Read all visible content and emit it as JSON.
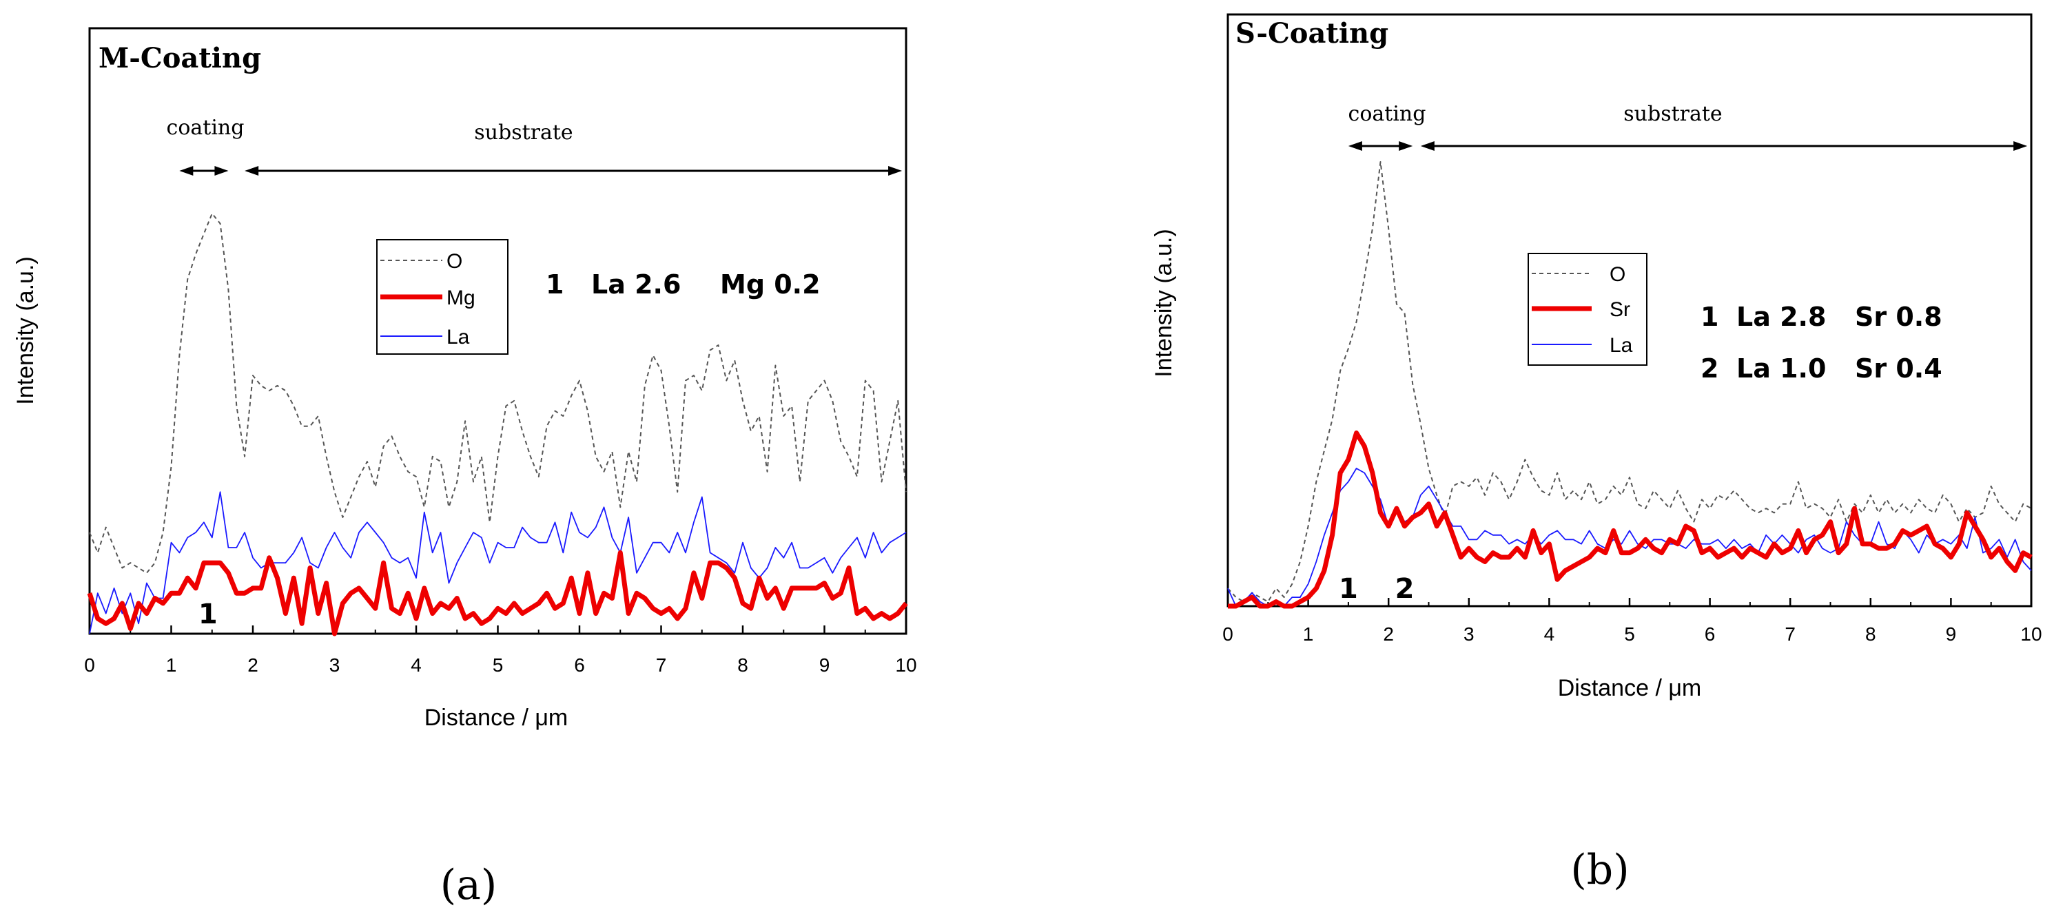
{
  "figure": {
    "panel_labels": [
      "(a)",
      "(b)"
    ]
  },
  "chart_data": [
    {
      "type": "line",
      "title": "M-Coating",
      "xlabel": "Distance / μm",
      "ylabel": "Intensity (a.u.)",
      "xlim": [
        0,
        10
      ],
      "ylim": [
        0,
        1
      ],
      "xticks": [
        "0",
        "1",
        "2",
        "3",
        "4",
        "5",
        "6",
        "7",
        "8",
        "9",
        "10"
      ],
      "yticks": [],
      "legend": [
        "O",
        "Mg",
        "La"
      ],
      "legend_placement": "upper-middle",
      "colors": {
        "O": "#555555",
        "Mg": "#ee0000",
        "La": "#1a1aff"
      },
      "region_labels": {
        "coating": "coating",
        "substrate": "substrate"
      },
      "regions": [
        {
          "name": "coating",
          "x_start": 1.1,
          "x_end": 1.7
        },
        {
          "name": "substrate",
          "x_start": 1.9,
          "x_end": 9.95
        }
      ],
      "annotation_text": [
        "1",
        "La 2.6",
        "Mg 0.2"
      ],
      "point_markers": [
        {
          "label": "1",
          "x": 1.45
        }
      ],
      "x": [
        0.0,
        0.1,
        0.2,
        0.3,
        0.4,
        0.5,
        0.6,
        0.7,
        0.8,
        0.9,
        1.0,
        1.1,
        1.2,
        1.3,
        1.4,
        1.5,
        1.6,
        1.7,
        1.8,
        1.9,
        2.0,
        2.1,
        2.2,
        2.3,
        2.4,
        2.5,
        2.6,
        2.7,
        2.8,
        2.9,
        3.0,
        3.1,
        3.2,
        3.3,
        3.4,
        3.5,
        3.6,
        3.7,
        3.8,
        3.9,
        4.0,
        4.1,
        4.2,
        4.3,
        4.4,
        4.5,
        4.6,
        4.7,
        4.8,
        4.9,
        5.0,
        5.1,
        5.2,
        5.3,
        5.4,
        5.5,
        5.6,
        5.7,
        5.8,
        5.9,
        6.0,
        6.1,
        6.2,
        6.3,
        6.4,
        6.5,
        6.6,
        6.7,
        6.8,
        6.9,
        7.0,
        7.1,
        7.2,
        7.3,
        7.4,
        7.5,
        7.6,
        7.7,
        7.8,
        7.9,
        8.0,
        8.1,
        8.2,
        8.3,
        8.4,
        8.5,
        8.6,
        8.7,
        8.8,
        8.9,
        9.0,
        9.1,
        9.2,
        9.3,
        9.4,
        9.5,
        9.6,
        9.7,
        9.8,
        9.9,
        10.0
      ],
      "series": [
        {
          "name": "O",
          "values": [
            0.2,
            0.16,
            0.21,
            0.17,
            0.13,
            0.14,
            0.13,
            0.12,
            0.14,
            0.2,
            0.33,
            0.55,
            0.7,
            0.75,
            0.79,
            0.83,
            0.81,
            0.68,
            0.45,
            0.35,
            0.51,
            0.49,
            0.48,
            0.49,
            0.48,
            0.45,
            0.41,
            0.41,
            0.43,
            0.35,
            0.28,
            0.23,
            0.27,
            0.31,
            0.34,
            0.29,
            0.37,
            0.39,
            0.35,
            0.32,
            0.31,
            0.25,
            0.35,
            0.34,
            0.25,
            0.3,
            0.42,
            0.3,
            0.35,
            0.22,
            0.35,
            0.45,
            0.46,
            0.4,
            0.35,
            0.31,
            0.41,
            0.44,
            0.43,
            0.47,
            0.5,
            0.44,
            0.35,
            0.32,
            0.36,
            0.25,
            0.36,
            0.3,
            0.49,
            0.55,
            0.52,
            0.41,
            0.28,
            0.5,
            0.51,
            0.48,
            0.56,
            0.57,
            0.5,
            0.54,
            0.46,
            0.4,
            0.43,
            0.32,
            0.53,
            0.43,
            0.45,
            0.3,
            0.46,
            0.48,
            0.5,
            0.46,
            0.38,
            0.35,
            0.31,
            0.5,
            0.48,
            0.3,
            0.38,
            0.46,
            0.28
          ]
        },
        {
          "name": "Mg",
          "values": [
            0.08,
            0.03,
            0.02,
            0.03,
            0.06,
            0.01,
            0.06,
            0.04,
            0.07,
            0.06,
            0.08,
            0.08,
            0.11,
            0.09,
            0.14,
            0.14,
            0.14,
            0.12,
            0.08,
            0.08,
            0.09,
            0.09,
            0.15,
            0.11,
            0.04,
            0.11,
            0.02,
            0.13,
            0.04,
            0.1,
            0.0,
            0.06,
            0.08,
            0.09,
            0.07,
            0.05,
            0.14,
            0.05,
            0.04,
            0.08,
            0.03,
            0.09,
            0.04,
            0.06,
            0.05,
            0.07,
            0.03,
            0.04,
            0.02,
            0.03,
            0.05,
            0.04,
            0.06,
            0.04,
            0.05,
            0.06,
            0.08,
            0.05,
            0.06,
            0.11,
            0.04,
            0.12,
            0.04,
            0.08,
            0.07,
            0.16,
            0.04,
            0.08,
            0.07,
            0.05,
            0.04,
            0.05,
            0.03,
            0.05,
            0.12,
            0.07,
            0.14,
            0.14,
            0.13,
            0.11,
            0.06,
            0.05,
            0.11,
            0.07,
            0.09,
            0.05,
            0.09,
            0.09,
            0.09,
            0.09,
            0.1,
            0.07,
            0.08,
            0.13,
            0.04,
            0.05,
            0.03,
            0.04,
            0.03,
            0.04,
            0.06
          ]
        },
        {
          "name": "La",
          "values": [
            0.0,
            0.08,
            0.04,
            0.09,
            0.04,
            0.08,
            0.02,
            0.1,
            0.07,
            0.07,
            0.18,
            0.16,
            0.19,
            0.2,
            0.22,
            0.19,
            0.28,
            0.17,
            0.17,
            0.2,
            0.15,
            0.13,
            0.14,
            0.14,
            0.14,
            0.16,
            0.19,
            0.14,
            0.13,
            0.17,
            0.2,
            0.17,
            0.15,
            0.2,
            0.22,
            0.2,
            0.18,
            0.15,
            0.14,
            0.15,
            0.11,
            0.24,
            0.16,
            0.2,
            0.1,
            0.14,
            0.17,
            0.2,
            0.19,
            0.14,
            0.18,
            0.17,
            0.17,
            0.21,
            0.19,
            0.18,
            0.18,
            0.22,
            0.16,
            0.24,
            0.2,
            0.19,
            0.21,
            0.25,
            0.19,
            0.16,
            0.23,
            0.12,
            0.15,
            0.18,
            0.18,
            0.16,
            0.2,
            0.16,
            0.22,
            0.27,
            0.16,
            0.15,
            0.14,
            0.12,
            0.18,
            0.13,
            0.11,
            0.13,
            0.17,
            0.15,
            0.18,
            0.13,
            0.13,
            0.14,
            0.15,
            0.12,
            0.15,
            0.17,
            0.19,
            0.15,
            0.2,
            0.16,
            0.18,
            0.19,
            0.2
          ]
        }
      ]
    },
    {
      "type": "line",
      "title": "S-Coating",
      "xlabel": "Distance / μm",
      "ylabel": "Intensity (a.u.)",
      "xlim": [
        0,
        10
      ],
      "ylim": [
        0,
        1
      ],
      "xticks": [
        "0",
        "1",
        "2",
        "3",
        "4",
        "5",
        "6",
        "7",
        "8",
        "9",
        "10"
      ],
      "yticks": [],
      "legend": [
        "O",
        "Sr",
        "La"
      ],
      "legend_placement": "upper-middle",
      "colors": {
        "O": "#555555",
        "Sr": "#ee0000",
        "La": "#1a1aff"
      },
      "region_labels": {
        "coating": "coating",
        "substrate": "substrate"
      },
      "regions": [
        {
          "name": "coating",
          "x_start": 1.5,
          "x_end": 2.3
        },
        {
          "name": "substrate",
          "x_start": 2.4,
          "x_end": 9.95
        }
      ],
      "annotation_text": [
        [
          "1",
          "La 2.8",
          "Sr 0.8"
        ],
        [
          "2",
          "La 1.0",
          "Sr 0.4"
        ]
      ],
      "point_markers": [
        {
          "label": "1",
          "x": 1.5
        },
        {
          "label": "2",
          "x": 2.2
        }
      ],
      "x": [
        0.0,
        0.1,
        0.2,
        0.3,
        0.4,
        0.5,
        0.6,
        0.7,
        0.8,
        0.9,
        1.0,
        1.1,
        1.2,
        1.3,
        1.4,
        1.5,
        1.6,
        1.7,
        1.8,
        1.9,
        2.0,
        2.1,
        2.2,
        2.3,
        2.4,
        2.5,
        2.6,
        2.7,
        2.8,
        2.9,
        3.0,
        3.1,
        3.2,
        3.3,
        3.4,
        3.5,
        3.6,
        3.7,
        3.8,
        3.9,
        4.0,
        4.1,
        4.2,
        4.3,
        4.4,
        4.5,
        4.6,
        4.7,
        4.8,
        4.9,
        5.0,
        5.1,
        5.2,
        5.3,
        5.4,
        5.5,
        5.6,
        5.7,
        5.8,
        5.9,
        6.0,
        6.1,
        6.2,
        6.3,
        6.4,
        6.5,
        6.6,
        6.7,
        6.8,
        6.9,
        7.0,
        7.1,
        7.2,
        7.3,
        7.4,
        7.5,
        7.6,
        7.7,
        7.8,
        7.9,
        8.0,
        8.1,
        8.2,
        8.3,
        8.4,
        8.5,
        8.6,
        8.7,
        8.8,
        8.9,
        9.0,
        9.1,
        9.2,
        9.3,
        9.4,
        9.5,
        9.6,
        9.7,
        9.8,
        9.9,
        10.0
      ],
      "series": [
        {
          "name": "O",
          "values": [
            0.04,
            0.02,
            0.01,
            0.03,
            0.02,
            0.01,
            0.04,
            0.02,
            0.05,
            0.1,
            0.18,
            0.28,
            0.35,
            0.42,
            0.53,
            0.58,
            0.64,
            0.74,
            0.85,
            1.0,
            0.85,
            0.68,
            0.66,
            0.5,
            0.41,
            0.31,
            0.25,
            0.2,
            0.27,
            0.28,
            0.27,
            0.29,
            0.25,
            0.3,
            0.28,
            0.24,
            0.28,
            0.33,
            0.29,
            0.26,
            0.25,
            0.3,
            0.24,
            0.26,
            0.24,
            0.28,
            0.23,
            0.24,
            0.27,
            0.25,
            0.29,
            0.23,
            0.22,
            0.26,
            0.24,
            0.22,
            0.26,
            0.22,
            0.19,
            0.24,
            0.22,
            0.25,
            0.24,
            0.26,
            0.24,
            0.22,
            0.21,
            0.22,
            0.21,
            0.23,
            0.23,
            0.28,
            0.22,
            0.23,
            0.22,
            0.2,
            0.24,
            0.19,
            0.23,
            0.21,
            0.25,
            0.21,
            0.24,
            0.21,
            0.23,
            0.21,
            0.24,
            0.22,
            0.21,
            0.25,
            0.23,
            0.19,
            0.22,
            0.2,
            0.21,
            0.27,
            0.23,
            0.21,
            0.19,
            0.23,
            0.22
          ]
        },
        {
          "name": "Sr",
          "values": [
            0.0,
            0.0,
            0.01,
            0.02,
            0.0,
            0.0,
            0.01,
            0.0,
            0.0,
            0.01,
            0.02,
            0.04,
            0.08,
            0.16,
            0.3,
            0.33,
            0.39,
            0.36,
            0.3,
            0.21,
            0.18,
            0.22,
            0.18,
            0.2,
            0.21,
            0.23,
            0.18,
            0.21,
            0.16,
            0.11,
            0.13,
            0.11,
            0.1,
            0.12,
            0.11,
            0.11,
            0.13,
            0.11,
            0.17,
            0.12,
            0.14,
            0.06,
            0.08,
            0.09,
            0.1,
            0.11,
            0.13,
            0.12,
            0.17,
            0.12,
            0.12,
            0.13,
            0.15,
            0.13,
            0.12,
            0.15,
            0.14,
            0.18,
            0.17,
            0.12,
            0.13,
            0.11,
            0.12,
            0.13,
            0.11,
            0.13,
            0.12,
            0.11,
            0.14,
            0.12,
            0.13,
            0.17,
            0.12,
            0.15,
            0.16,
            0.19,
            0.12,
            0.14,
            0.22,
            0.14,
            0.14,
            0.13,
            0.13,
            0.14,
            0.17,
            0.16,
            0.17,
            0.18,
            0.14,
            0.13,
            0.11,
            0.14,
            0.21,
            0.18,
            0.15,
            0.11,
            0.13,
            0.1,
            0.08,
            0.12,
            0.11
          ]
        },
        {
          "name": "La",
          "values": [
            0.04,
            0.0,
            0.01,
            0.03,
            0.01,
            0.0,
            0.01,
            0.0,
            0.02,
            0.02,
            0.05,
            0.1,
            0.16,
            0.21,
            0.26,
            0.28,
            0.31,
            0.3,
            0.27,
            0.24,
            0.18,
            0.21,
            0.19,
            0.2,
            0.25,
            0.27,
            0.24,
            0.21,
            0.18,
            0.18,
            0.15,
            0.15,
            0.17,
            0.16,
            0.16,
            0.14,
            0.15,
            0.14,
            0.16,
            0.14,
            0.16,
            0.17,
            0.15,
            0.15,
            0.14,
            0.17,
            0.14,
            0.13,
            0.15,
            0.14,
            0.17,
            0.14,
            0.13,
            0.15,
            0.15,
            0.14,
            0.14,
            0.13,
            0.15,
            0.14,
            0.14,
            0.15,
            0.13,
            0.15,
            0.13,
            0.14,
            0.12,
            0.16,
            0.14,
            0.16,
            0.14,
            0.12,
            0.15,
            0.16,
            0.13,
            0.12,
            0.13,
            0.19,
            0.16,
            0.14,
            0.14,
            0.19,
            0.14,
            0.13,
            0.17,
            0.15,
            0.12,
            0.16,
            0.14,
            0.15,
            0.14,
            0.16,
            0.13,
            0.2,
            0.12,
            0.13,
            0.15,
            0.11,
            0.15,
            0.1,
            0.08
          ]
        }
      ]
    }
  ]
}
